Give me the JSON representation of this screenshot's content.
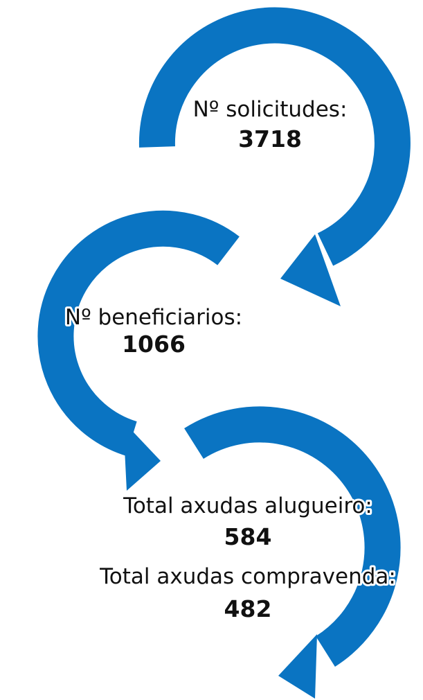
{
  "items": [
    {
      "label": "Nº solicitudes:",
      "value": 3718
    },
    {
      "label": "Nº beneficiarios:",
      "value": 1066
    },
    {
      "label": "Total axudas alugueiro:",
      "value": 584
    },
    {
      "label": "Total axudas compravenda:",
      "value": 482
    }
  ]
}
